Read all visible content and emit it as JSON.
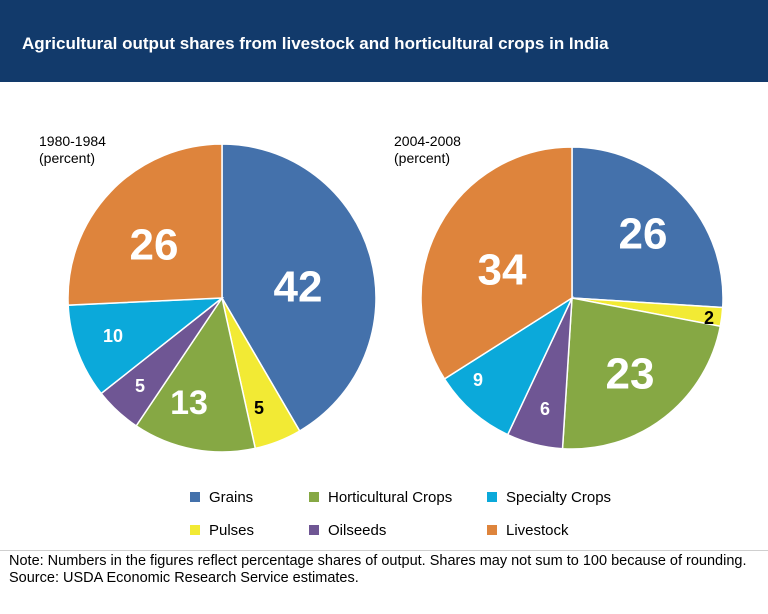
{
  "header": {
    "title": "Agricultural output shares from livestock and horticultural crops in India"
  },
  "chart_data": [
    {
      "type": "pie",
      "period_label": "1980-1984",
      "unit_label": "(percent)",
      "slices": [
        {
          "name": "Grains",
          "value": 42,
          "color": "#4471ab"
        },
        {
          "name": "Pulses",
          "value": 5,
          "color": "#f2ea34"
        },
        {
          "name": "Horticultural Crops",
          "value": 13,
          "color": "#86a844"
        },
        {
          "name": "Oilseeds",
          "value": 5,
          "color": "#6f5694"
        },
        {
          "name": "Specialty Crops",
          "value": 10,
          "color": "#0ba9da"
        },
        {
          "name": "Livestock",
          "value": 26,
          "color": "#de843c"
        }
      ]
    },
    {
      "type": "pie",
      "period_label": "2004-2008",
      "unit_label": "(percent)",
      "slices": [
        {
          "name": "Grains",
          "value": 26,
          "color": "#4471ab"
        },
        {
          "name": "Pulses",
          "value": 2,
          "color": "#f2ea34"
        },
        {
          "name": "Horticultural Crops",
          "value": 23,
          "color": "#86a844"
        },
        {
          "name": "Oilseeds",
          "value": 6,
          "color": "#6f5694"
        },
        {
          "name": "Specialty Crops",
          "value": 9,
          "color": "#0ba9da"
        },
        {
          "name": "Livestock",
          "value": 34,
          "color": "#de843c"
        }
      ]
    }
  ],
  "legend": [
    {
      "label": "Grains",
      "color": "#4471ab"
    },
    {
      "label": "Horticultural Crops",
      "color": "#86a844"
    },
    {
      "label": "Specialty Crops",
      "color": "#0ba9da"
    },
    {
      "label": "Pulses",
      "color": "#f2ea34"
    },
    {
      "label": "Oilseeds",
      "color": "#6f5694"
    },
    {
      "label": "Livestock",
      "color": "#de843c"
    }
  ],
  "footer": {
    "note": "Note: Numbers in the figures reflect percentage shares of output. Shares may not sum to 100 because of rounding.",
    "source": "Source: USDA Economic Research Service estimates."
  }
}
